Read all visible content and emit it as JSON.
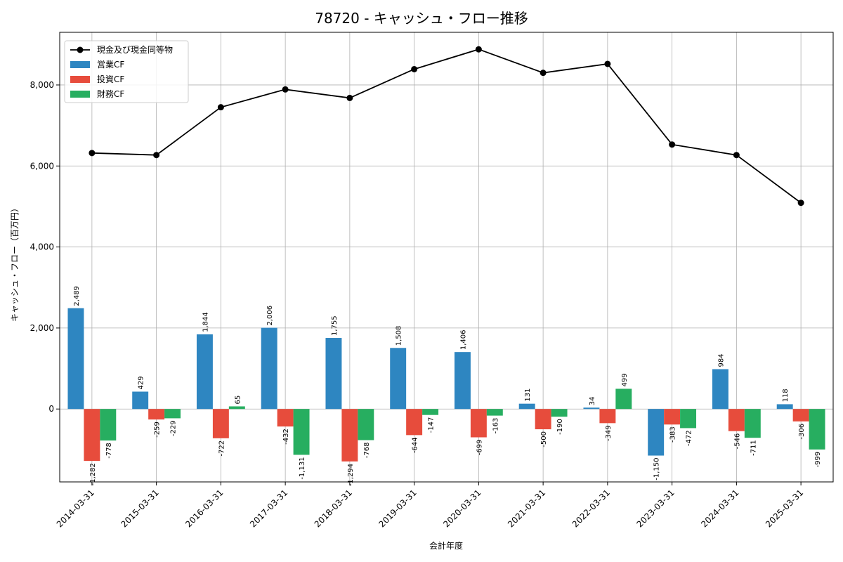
{
  "chart_data": {
    "type": "bar",
    "title": "78720 - キャッシュ・フロー推移",
    "xlabel": "会計年度",
    "ylabel": "キャッシュ・フロー（百万円）",
    "categories": [
      "2014-03-31",
      "2015-03-31",
      "2016-03-31",
      "2017-03-31",
      "2018-03-31",
      "2019-03-31",
      "2020-03-31",
      "2021-03-31",
      "2022-03-31",
      "2023-03-31",
      "2024-03-31",
      "2025-03-31"
    ],
    "ylim": [
      -1800,
      9300
    ],
    "yticks": [
      0,
      2000,
      4000,
      6000,
      8000
    ],
    "ytick_labels": [
      "0",
      "2,000",
      "4,000",
      "6,000",
      "8,000"
    ],
    "grid": true,
    "legend_position": "top-left",
    "series": [
      {
        "name": "営業CF",
        "kind": "bar",
        "color": "#2e86c1",
        "values": [
          2489,
          429,
          1844,
          2006,
          1755,
          1508,
          1406,
          131,
          34,
          -1150,
          984,
          118
        ],
        "labels": [
          "2,489",
          "429",
          "1,844",
          "2,006",
          "1,755",
          "1,508",
          "1,406",
          "131",
          "34",
          "-1,150",
          "984",
          "118"
        ]
      },
      {
        "name": "投資CF",
        "kind": "bar",
        "color": "#e74c3c",
        "values": [
          -1282,
          -259,
          -722,
          -432,
          -1294,
          -644,
          -699,
          -500,
          -349,
          -383,
          -546,
          -306
        ],
        "labels": [
          "-1,282",
          "-259",
          "-722",
          "-432",
          "-1,294",
          "-644",
          "-699",
          "-500",
          "-349",
          "-383",
          "-546",
          "-306"
        ]
      },
      {
        "name": "財務CF",
        "kind": "bar",
        "color": "#27ae60",
        "values": [
          -778,
          -229,
          65,
          -1131,
          -768,
          -147,
          -163,
          -190,
          499,
          -472,
          -711,
          -999
        ],
        "labels": [
          "-778",
          "-229",
          "65",
          "-1,131",
          "-768",
          "-147",
          "-163",
          "-190",
          "499",
          "-472",
          "-711",
          "-999"
        ]
      },
      {
        "name": "現金及び現金同等物",
        "kind": "line",
        "color": "#000000",
        "values": [
          6320,
          6270,
          7450,
          7890,
          7680,
          8390,
          8880,
          8300,
          8520,
          6530,
          6270,
          5090
        ]
      }
    ]
  }
}
